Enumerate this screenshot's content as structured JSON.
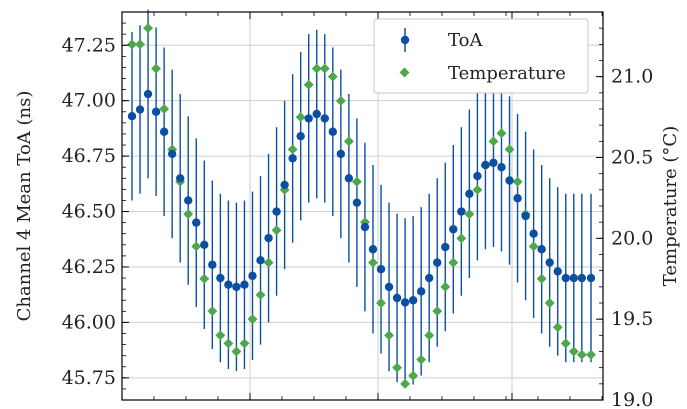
{
  "chart_data": {
    "type": "line",
    "title": "",
    "xlabel": "",
    "grid": true,
    "legend_position": "top-right",
    "left_axis": {
      "label": "Channel 4 Mean ToA (ns)",
      "range": [
        45.65,
        47.4
      ],
      "ticks": [
        "45.75",
        "46.00",
        "46.25",
        "46.50",
        "46.75",
        "47.00",
        "47.25"
      ]
    },
    "right_axis": {
      "label": "Temperature (°C)",
      "range": [
        19.0,
        21.4
      ],
      "ticks": [
        "19.0",
        "19.5",
        "20.0",
        "20.5",
        "21.0"
      ]
    },
    "x_range": [
      0,
      100
    ],
    "series": [
      {
        "name": "ToA",
        "axis": "left",
        "color": "#0b4ea2",
        "marker": "circle",
        "error": 0.38,
        "x": [
          0,
          1.75,
          3.5,
          5.25,
          7,
          8.75,
          10.5,
          12.25,
          14,
          15.75,
          17.5,
          19.25,
          21,
          22.75,
          24.5,
          26.25,
          28,
          29.75,
          31.5,
          33.25,
          35,
          36.75,
          38.5,
          40.25,
          42,
          43.75,
          45.5,
          47.25,
          49,
          50.75,
          52.5,
          54.25,
          56,
          57.75,
          59.5,
          61.25,
          63,
          64.75,
          66.5,
          68.25,
          70,
          71.75,
          73.5,
          75.25,
          77,
          78.75,
          80.5,
          82.25,
          84,
          85.75,
          87.5,
          89.25,
          91,
          92.75,
          94.5,
          96.25,
          98,
          100
        ],
        "y": [
          46.93,
          46.96,
          47.03,
          46.95,
          46.86,
          46.76,
          46.65,
          46.55,
          46.45,
          46.35,
          46.26,
          46.2,
          46.17,
          46.16,
          46.17,
          46.21,
          46.28,
          46.38,
          46.5,
          46.62,
          46.74,
          46.84,
          46.92,
          46.94,
          46.92,
          46.86,
          46.76,
          46.65,
          46.54,
          46.43,
          46.33,
          46.24,
          46.16,
          46.11,
          46.09,
          46.1,
          46.14,
          46.2,
          46.27,
          46.34,
          46.42,
          46.5,
          46.58,
          46.66,
          46.71,
          46.72,
          46.7,
          46.64,
          46.56,
          46.48,
          46.4,
          46.33,
          46.27,
          46.23,
          46.2,
          46.2,
          46.2,
          46.2
        ]
      },
      {
        "name": "Temperature",
        "axis": "right",
        "color": "#4da84d",
        "marker": "diamond",
        "x": [
          0,
          1.75,
          3.5,
          5.25,
          7,
          8.75,
          10.5,
          12.25,
          14,
          15.75,
          17.5,
          19.25,
          21,
          22.75,
          24.5,
          26.25,
          28,
          29.75,
          31.5,
          33.25,
          35,
          36.75,
          38.5,
          40.25,
          42,
          43.75,
          45.5,
          47.25,
          49,
          50.75,
          52.5,
          54.25,
          56,
          57.75,
          59.5,
          61.25,
          63,
          64.75,
          66.5,
          68.25,
          70,
          71.75,
          73.5,
          75.25,
          77,
          78.75,
          80.5,
          82.25,
          84,
          85.75,
          87.5,
          89.25,
          91,
          92.75,
          94.5,
          96.25,
          98,
          100
        ],
        "y": [
          21.2,
          21.2,
          21.3,
          21.05,
          20.8,
          20.55,
          20.35,
          20.15,
          19.95,
          19.75,
          19.55,
          19.4,
          19.35,
          19.3,
          19.35,
          19.5,
          19.65,
          19.85,
          20.05,
          20.3,
          20.55,
          20.75,
          20.95,
          21.05,
          21.05,
          21.0,
          20.85,
          20.6,
          20.35,
          20.1,
          19.85,
          19.6,
          19.4,
          19.2,
          19.1,
          19.15,
          19.25,
          19.4,
          19.55,
          19.7,
          19.85,
          20.0,
          20.15,
          20.3,
          20.45,
          20.6,
          20.65,
          20.55,
          20.35,
          20.15,
          19.95,
          19.75,
          19.6,
          19.45,
          19.35,
          19.3,
          19.28,
          19.28
        ]
      }
    ]
  }
}
